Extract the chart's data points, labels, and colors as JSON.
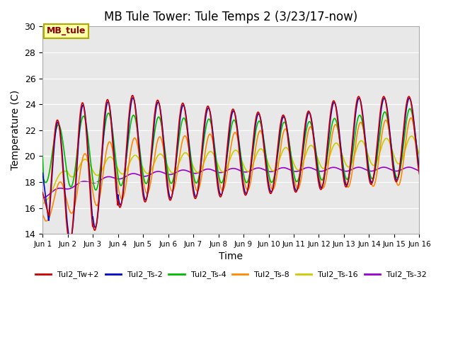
{
  "title": "MB Tule Tower: Tule Temps 2 (3/23/17-now)",
  "xlabel": "Time",
  "ylabel": "Temperature (C)",
  "ylim": [
    14,
    30
  ],
  "xlim": [
    0,
    15
  ],
  "bg_color": "#e8e8e8",
  "series": [
    {
      "label": "Tul2_Tw+2",
      "color": "#cc0000",
      "linewidth": 1.2
    },
    {
      "label": "Tul2_Ts-2",
      "color": "#0000cc",
      "linewidth": 1.2
    },
    {
      "label": "Tul2_Ts-4",
      "color": "#00bb00",
      "linewidth": 1.2
    },
    {
      "label": "Tul2_Ts-8",
      "color": "#ff8800",
      "linewidth": 1.2
    },
    {
      "label": "Tul2_Ts-16",
      "color": "#cccc00",
      "linewidth": 1.2
    },
    {
      "label": "Tul2_Ts-32",
      "color": "#9900cc",
      "linewidth": 1.2
    }
  ],
  "xtick_labels": [
    "Jun 1",
    "Jun 2",
    "Jun 3",
    "Jun 4",
    "Jun 5",
    "Jun 6",
    "Jun 7",
    "Jun 8",
    "Jun 9",
    "Jun 10",
    "Jun 11",
    "Jun 12",
    "Jun 13",
    "Jun 14",
    "Jun 15",
    "Jun 16"
  ],
  "xtick_positions": [
    0,
    1,
    2,
    3,
    4,
    5,
    6,
    7,
    8,
    9,
    10,
    11,
    12,
    13,
    14,
    15
  ],
  "ytick_positions": [
    14,
    16,
    18,
    20,
    22,
    24,
    26,
    28,
    30
  ],
  "station_label": "MB_tule",
  "station_label_color": "#880000",
  "station_label_bg": "#ffffaa",
  "station_label_edge": "#aaaa00"
}
